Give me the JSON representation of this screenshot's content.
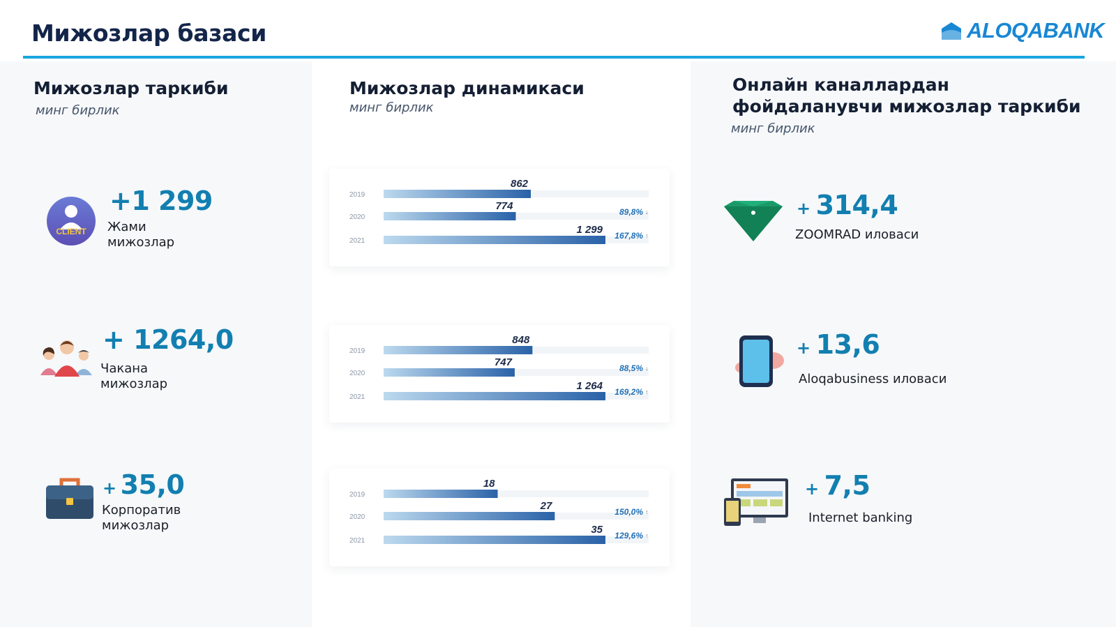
{
  "header": {
    "title": "Мижозлар базаси",
    "logo_text": "ALOQABANK"
  },
  "left": {
    "title": "Мижозлар таркиби",
    "subtitle": "минг бирлик",
    "items": [
      {
        "value": "+1 299",
        "label_line1": "Жами",
        "label_line2": "мижозлар",
        "icon": "client-icon",
        "icon_text": "CLIENT"
      },
      {
        "value": "+ 1264,0",
        "label_line1": "Чакана",
        "label_line2": "мижозлар",
        "icon": "people-icon"
      },
      {
        "value_plus": "+",
        "value": "35,0",
        "label_line1": "Корпоратив",
        "label_line2": "мижозлар",
        "icon": "briefcase-icon"
      }
    ]
  },
  "middle": {
    "title": "Мижозлар динамикаси",
    "subtitle": "минг бирлик"
  },
  "right": {
    "title_line1": "Онлайн каналлардан",
    "title_line2": "фойдаланувчи мижозлар таркиби",
    "subtitle": "минг бирлик",
    "items": [
      {
        "plus": "+",
        "value": "314,4",
        "label": "ZOOMRAD иловаси",
        "icon": "diamond-icon"
      },
      {
        "plus": "+",
        "value": "13,6",
        "label": "Aloqabusiness иловаси",
        "icon": "phone-icon"
      },
      {
        "plus": "+",
        "value": "7,5",
        "label": "Internet banking",
        "icon": "devices-icon"
      }
    ]
  },
  "colors": {
    "accent": "#17a6de",
    "title": "#14254a",
    "value": "#127fb0",
    "bar_dark": "#2a62a8",
    "bar_light": "#bcd9ee",
    "growth": "#1f6fb5"
  },
  "chart_data": [
    {
      "type": "bar",
      "orientation": "horizontal",
      "categories": [
        "2019",
        "2020",
        "2021"
      ],
      "values": [
        862,
        774,
        1299
      ],
      "value_labels": [
        "862",
        "774",
        "1 299"
      ],
      "growth_labels": [
        "",
        "89,8%",
        "167,8%"
      ],
      "growth_arrows": [
        "",
        "↓",
        "↑"
      ]
    },
    {
      "type": "bar",
      "orientation": "horizontal",
      "categories": [
        "2019",
        "2020",
        "2021"
      ],
      "values": [
        848,
        747,
        1264
      ],
      "value_labels": [
        "848",
        "747",
        "1 264"
      ],
      "growth_labels": [
        "",
        "88,5%",
        "169,2%"
      ],
      "growth_arrows": [
        "",
        "↓",
        "↑"
      ]
    },
    {
      "type": "bar",
      "orientation": "horizontal",
      "categories": [
        "2019",
        "2020",
        "2021"
      ],
      "values": [
        18,
        27,
        35
      ],
      "value_labels": [
        "18",
        "27",
        "35"
      ],
      "growth_labels": [
        "",
        "150,0%",
        "129,6%"
      ],
      "growth_arrows": [
        "",
        "↑",
        "↑"
      ]
    }
  ]
}
